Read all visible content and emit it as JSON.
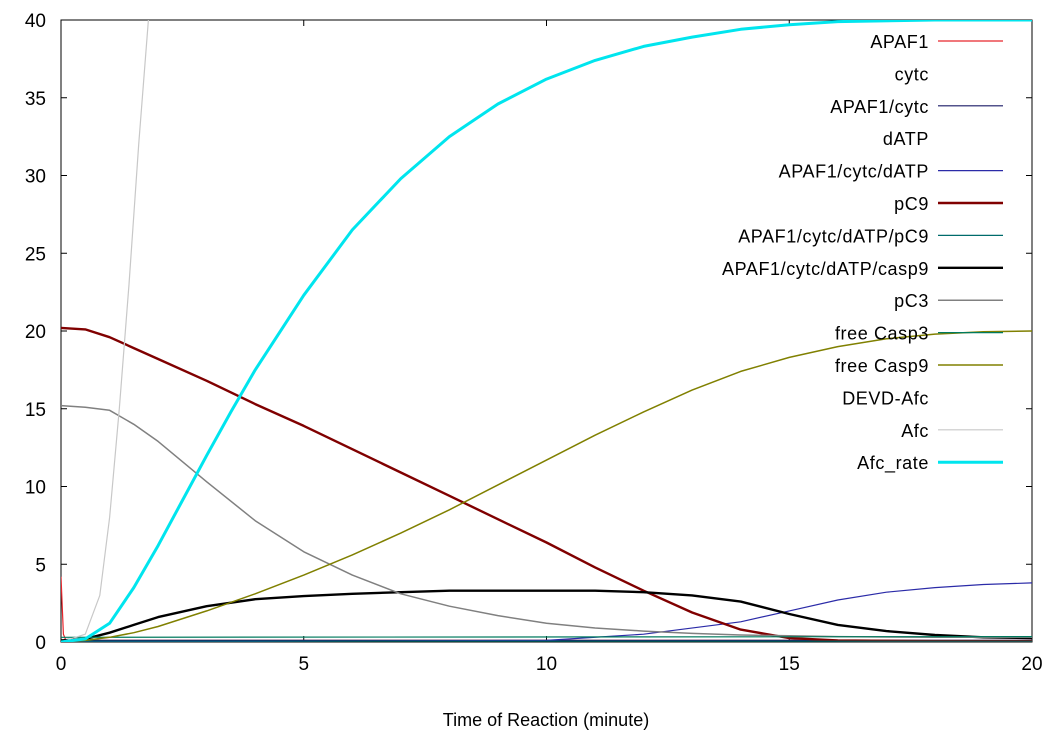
{
  "chart_data": {
    "type": "line",
    "title": "",
    "xlabel": "Time of Reaction (minute)",
    "ylabel": "",
    "xlim": [
      0,
      20
    ],
    "ylim": [
      0,
      40
    ],
    "xticks": [
      0,
      5,
      10,
      15,
      20
    ],
    "yticks": [
      0,
      5,
      10,
      15,
      20,
      25,
      30,
      35,
      40
    ],
    "grid": false,
    "legend_position": "top-right",
    "series": [
      {
        "name": "APAF1",
        "color": "#e8262c",
        "width": 1.2,
        "legend_line": true,
        "points": [
          [
            0,
            4.2
          ],
          [
            0.05,
            0.5
          ],
          [
            0.1,
            0.1
          ],
          [
            20,
            0.1
          ]
        ]
      },
      {
        "name": "cytc",
        "color": "#e8262c",
        "width": 1.2,
        "legend_line": false,
        "points": []
      },
      {
        "name": "APAF1/cytc",
        "color": "#1a1a66",
        "width": 1.2,
        "legend_line": true,
        "points": [
          [
            0,
            0.1
          ],
          [
            20,
            0.1
          ]
        ]
      },
      {
        "name": "dATP",
        "color": "#000080",
        "width": 1.2,
        "legend_line": false,
        "points": []
      },
      {
        "name": "APAF1/cytc/dATP",
        "color": "#2b2ba8",
        "width": 1.2,
        "legend_line": true,
        "points": [
          [
            0,
            0.0
          ],
          [
            10,
            0.1
          ],
          [
            12,
            0.5
          ],
          [
            14,
            1.3
          ],
          [
            15,
            2.0
          ],
          [
            16,
            2.7
          ],
          [
            17,
            3.2
          ],
          [
            18,
            3.5
          ],
          [
            19,
            3.7
          ],
          [
            20,
            3.8
          ]
        ]
      },
      {
        "name": "pC9",
        "color": "#800000",
        "width": 2.4,
        "legend_line": true,
        "points": [
          [
            0,
            20.2
          ],
          [
            0.5,
            20.1
          ],
          [
            1,
            19.6
          ],
          [
            1.5,
            18.9
          ],
          [
            2,
            18.2
          ],
          [
            3,
            16.8
          ],
          [
            4,
            15.3
          ],
          [
            5,
            13.9
          ],
          [
            6,
            12.4
          ],
          [
            7,
            10.9
          ],
          [
            8,
            9.4
          ],
          [
            9,
            7.9
          ],
          [
            10,
            6.4
          ],
          [
            11,
            4.8
          ],
          [
            12,
            3.3
          ],
          [
            13,
            1.9
          ],
          [
            14,
            0.8
          ],
          [
            15,
            0.25
          ],
          [
            16,
            0.1
          ],
          [
            18,
            0.05
          ],
          [
            20,
            0.05
          ]
        ]
      },
      {
        "name": "APAF1/cytc/dATP/pC9",
        "color": "#006b6b",
        "width": 1.2,
        "legend_line": true,
        "points": [
          [
            0,
            0.05
          ],
          [
            20,
            0.05
          ]
        ]
      },
      {
        "name": "APAF1/cytc/dATP/casp9",
        "color": "#000000",
        "width": 2.4,
        "legend_line": true,
        "points": [
          [
            0,
            0.1
          ],
          [
            0.5,
            0.2
          ],
          [
            1,
            0.6
          ],
          [
            1.5,
            1.1
          ],
          [
            2,
            1.6
          ],
          [
            3,
            2.3
          ],
          [
            4,
            2.75
          ],
          [
            5,
            2.95
          ],
          [
            6,
            3.1
          ],
          [
            7,
            3.2
          ],
          [
            8,
            3.3
          ],
          [
            9,
            3.3
          ],
          [
            10,
            3.3
          ],
          [
            11,
            3.3
          ],
          [
            12,
            3.2
          ],
          [
            13,
            3.0
          ],
          [
            14,
            2.6
          ],
          [
            15,
            1.8
          ],
          [
            16,
            1.1
          ],
          [
            17,
            0.7
          ],
          [
            18,
            0.45
          ],
          [
            19,
            0.3
          ],
          [
            20,
            0.25
          ]
        ]
      },
      {
        "name": "pC3",
        "color": "#808080",
        "width": 1.5,
        "legend_line": true,
        "points": [
          [
            0,
            15.2
          ],
          [
            0.5,
            15.1
          ],
          [
            1,
            14.9
          ],
          [
            1.5,
            14.0
          ],
          [
            2,
            12.9
          ],
          [
            3,
            10.3
          ],
          [
            4,
            7.8
          ],
          [
            5,
            5.8
          ],
          [
            6,
            4.3
          ],
          [
            7,
            3.1
          ],
          [
            8,
            2.3
          ],
          [
            9,
            1.7
          ],
          [
            10,
            1.2
          ],
          [
            11,
            0.9
          ],
          [
            12,
            0.7
          ],
          [
            13,
            0.55
          ],
          [
            14,
            0.45
          ],
          [
            15,
            0.4
          ],
          [
            16,
            0.35
          ],
          [
            18,
            0.3
          ],
          [
            20,
            0.3
          ]
        ]
      },
      {
        "name": "free Casp3",
        "color": "#007a5e",
        "width": 1.2,
        "legend_line": true,
        "points": [
          [
            0,
            0.3
          ],
          [
            20,
            0.35
          ]
        ]
      },
      {
        "name": "free Casp9",
        "color": "#808000",
        "width": 1.5,
        "legend_line": true,
        "points": [
          [
            0,
            0.0
          ],
          [
            0.5,
            0.1
          ],
          [
            1,
            0.3
          ],
          [
            1.5,
            0.6
          ],
          [
            2,
            1.0
          ],
          [
            3,
            2.0
          ],
          [
            4,
            3.1
          ],
          [
            5,
            4.3
          ],
          [
            6,
            5.6
          ],
          [
            7,
            7.0
          ],
          [
            8,
            8.5
          ],
          [
            9,
            10.1
          ],
          [
            10,
            11.7
          ],
          [
            11,
            13.3
          ],
          [
            12,
            14.8
          ],
          [
            13,
            16.2
          ],
          [
            14,
            17.4
          ],
          [
            15,
            18.3
          ],
          [
            16,
            19.0
          ],
          [
            17,
            19.5
          ],
          [
            18,
            19.8
          ],
          [
            19,
            19.95
          ],
          [
            20,
            20.0
          ]
        ]
      },
      {
        "name": "DEVD-Afc",
        "color": "#c0c0c0",
        "width": 1.2,
        "legend_line": false,
        "points": []
      },
      {
        "name": "Afc",
        "color": "#c8c8c8",
        "width": 1.2,
        "legend_line": true,
        "points": [
          [
            0,
            0.0
          ],
          [
            0.5,
            0.5
          ],
          [
            0.8,
            3.0
          ],
          [
            1.0,
            8.0
          ],
          [
            1.2,
            15.0
          ],
          [
            1.4,
            23.0
          ],
          [
            1.6,
            32.0
          ],
          [
            1.8,
            40.0
          ]
        ]
      },
      {
        "name": "Afc_rate",
        "color": "#00e5ee",
        "width": 3,
        "legend_line": true,
        "points": [
          [
            0,
            0.0
          ],
          [
            0.5,
            0.2
          ],
          [
            1,
            1.2
          ],
          [
            1.5,
            3.5
          ],
          [
            2,
            6.2
          ],
          [
            2.5,
            9.1
          ],
          [
            3,
            12.0
          ],
          [
            3.5,
            14.8
          ],
          [
            4,
            17.5
          ],
          [
            5,
            22.3
          ],
          [
            6,
            26.5
          ],
          [
            7,
            29.8
          ],
          [
            8,
            32.5
          ],
          [
            9,
            34.6
          ],
          [
            10,
            36.2
          ],
          [
            11,
            37.4
          ],
          [
            12,
            38.3
          ],
          [
            13,
            38.9
          ],
          [
            14,
            39.4
          ],
          [
            15,
            39.7
          ],
          [
            16,
            39.9
          ],
          [
            18,
            40.0
          ],
          [
            20,
            40.0
          ]
        ]
      }
    ]
  }
}
